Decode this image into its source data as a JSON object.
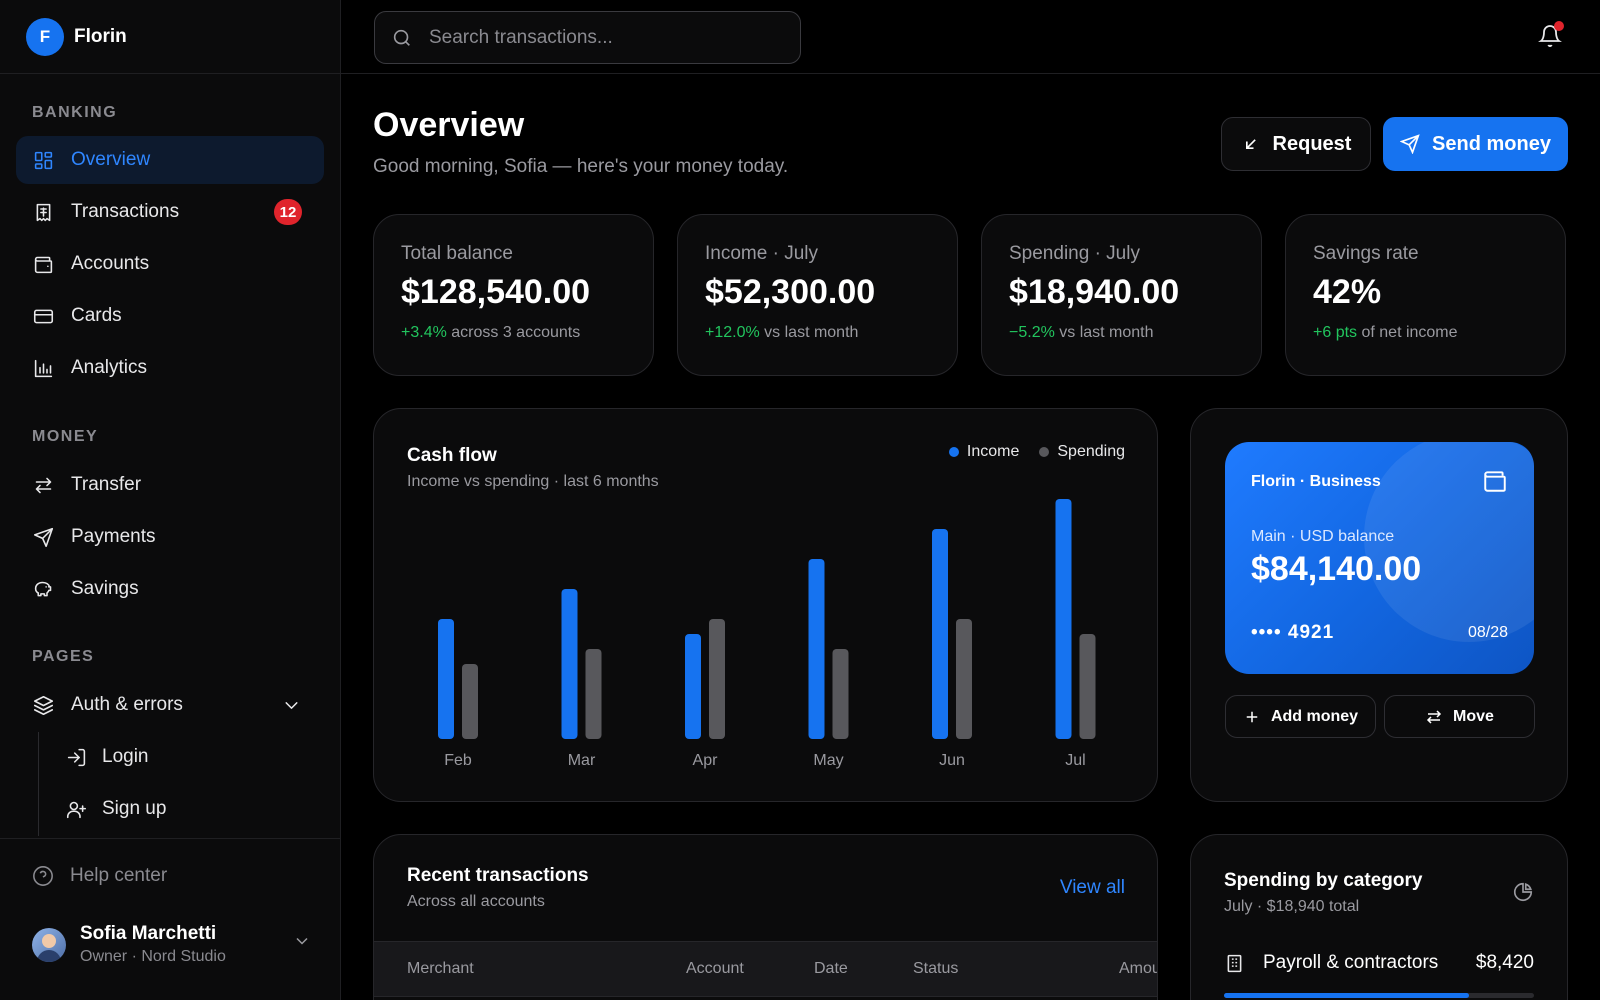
{
  "brand": {
    "initial": "F",
    "name": "Florin"
  },
  "sidebar": {
    "sections": [
      "BANKING",
      "MONEY",
      "PAGES"
    ],
    "banking": [
      {
        "label": "Overview",
        "icon": "grid-icon",
        "active": true
      },
      {
        "label": "Transactions",
        "icon": "receipt-icon",
        "badge": "12"
      },
      {
        "label": "Accounts",
        "icon": "wallet-icon"
      },
      {
        "label": "Cards",
        "icon": "card-icon"
      },
      {
        "label": "Analytics",
        "icon": "bar-chart-icon"
      }
    ],
    "money": [
      {
        "label": "Transfer",
        "icon": "swap-icon"
      },
      {
        "label": "Payments",
        "icon": "send-icon"
      },
      {
        "label": "Savings",
        "icon": "piggy-bank-icon"
      }
    ],
    "pages": {
      "group": {
        "label": "Auth & errors",
        "icon": "layers-icon"
      },
      "children": [
        {
          "label": "Login",
          "icon": "login-icon"
        },
        {
          "label": "Sign up",
          "icon": "user-plus-icon"
        }
      ]
    },
    "help": "Help center",
    "user": {
      "name": "Sofia Marchetti",
      "role": "Owner · Nord Studio"
    }
  },
  "search": {
    "placeholder": "Search transactions..."
  },
  "header": {
    "title": "Overview",
    "subtitle": "Good morning, Sofia — here's your money today.",
    "request_label": "Request",
    "send_label": "Send money"
  },
  "stats": [
    {
      "label": "Total balance",
      "value": "$128,540.00",
      "delta": "+3.4%",
      "note": " across 3 accounts"
    },
    {
      "label": "Income · July",
      "value": "$52,300.00",
      "delta": "+12.0%",
      "note": " vs last month"
    },
    {
      "label": "Spending · July",
      "value": "$18,940.00",
      "delta": "−5.2%",
      "note": " vs last month"
    },
    {
      "label": "Savings rate",
      "value": "42%",
      "delta": "+6 pts",
      "note": " of net income"
    }
  ],
  "cashflow": {
    "title": "Cash flow",
    "subtitle": "Income vs spending · last 6 months",
    "legend": [
      "Income",
      "Spending"
    ]
  },
  "chart_data": {
    "type": "bar",
    "categories": [
      "Feb",
      "Mar",
      "Apr",
      "May",
      "Jun",
      "Jul"
    ],
    "series": [
      {
        "name": "Income",
        "values": [
          40,
          50,
          35,
          60,
          70,
          80
        ],
        "color": "#1673f0"
      },
      {
        "name": "Spending",
        "values": [
          25,
          30,
          40,
          30,
          40,
          35
        ],
        "color": "#58585c"
      }
    ],
    "ylim": [
      0,
      100
    ],
    "grid": false,
    "legend_position": "top-right"
  },
  "card": {
    "name": "Florin · Business",
    "label": "Main · USD balance",
    "balance": "$84,140.00",
    "number": "•••• 4921",
    "expiry": "08/28",
    "add_label": "Add money",
    "move_label": "Move"
  },
  "recent": {
    "title": "Recent transactions",
    "subtitle": "Across all accounts",
    "view_all": "View all",
    "columns": [
      "Merchant",
      "Account",
      "Date",
      "Status",
      "Amou"
    ]
  },
  "category": {
    "title": "Spending by category",
    "subtitle": "July · $18,940 total",
    "items": [
      {
        "label": "Payroll & contractors",
        "amount": "$8,420",
        "share": 0.79,
        "icon": "building-icon"
      }
    ]
  },
  "colors": {
    "accent": "#1673f0",
    "positive": "#22c55e",
    "badge": "#e0242c"
  }
}
